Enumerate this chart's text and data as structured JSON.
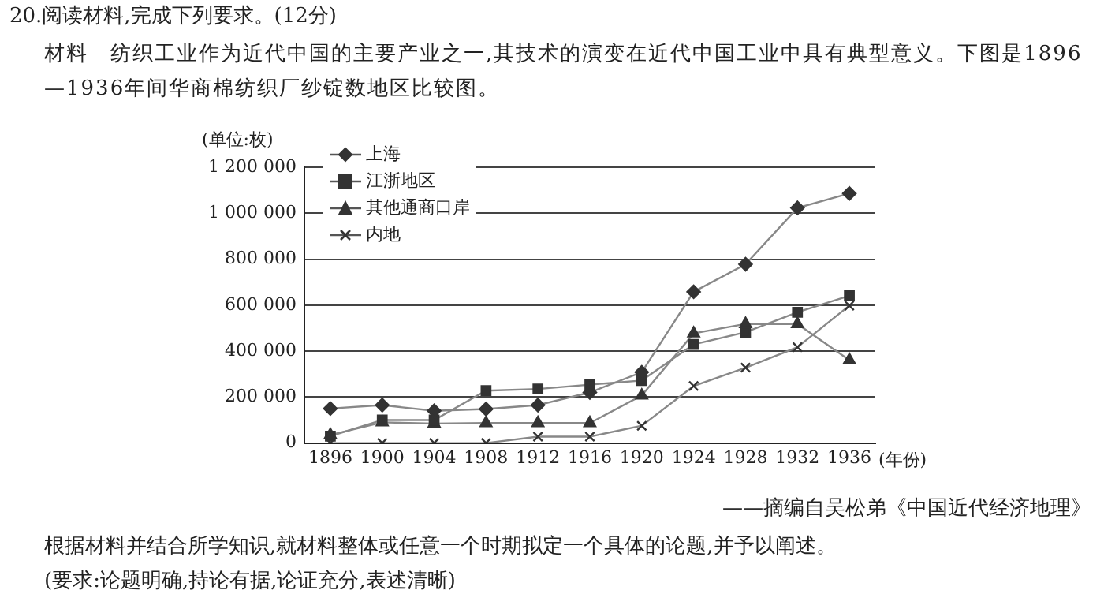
{
  "chart_data": {
    "type": "line",
    "title": "20.阅读材料,完成下列要求。(12分)",
    "subtitle": "材料　纺织工业作为近代中国的主要产业之一,其技术的演变在近代中国工业中具有典型意义。下图是1896—1936年间华商棉纺织厂纱锭数地区比较图。",
    "ylabel": "(单位:枚)",
    "xlabel": "(年份)",
    "categories": [
      "1896",
      "1900",
      "1904",
      "1908",
      "1912",
      "1916",
      "1920",
      "1924",
      "1928",
      "1932",
      "1936"
    ],
    "series": [
      {
        "name": "上海",
        "color": "#333333",
        "marker": "diamond",
        "values": [
          150000,
          165000,
          140000,
          148000,
          165000,
          220000,
          308000,
          658000,
          778000,
          1023000,
          1086000
        ]
      },
      {
        "name": "江浙地区",
        "color": "#333333",
        "marker": "square",
        "values": [
          30000,
          100000,
          100000,
          228000,
          235000,
          254000,
          272000,
          429000,
          482000,
          569000,
          641000
        ]
      },
      {
        "name": "其他通商口岸",
        "color": "#333333",
        "marker": "triangle",
        "values": [
          35000,
          90000,
          85000,
          87000,
          87000,
          87000,
          207000,
          477000,
          518000,
          518000,
          361000
        ]
      },
      {
        "name": "内地",
        "color": "#333333",
        "marker": "cross",
        "values": [
          0,
          0,
          0,
          0,
          28000,
          28000,
          75000,
          248000,
          328000,
          417000,
          598000
        ]
      }
    ],
    "ylim": [
      0,
      1200000
    ],
    "yticks": [
      {
        "value": 0,
        "label": "0"
      },
      {
        "value": 200000,
        "label": "200 000"
      },
      {
        "value": 400000,
        "label": "400 000"
      },
      {
        "value": 600000,
        "label": "600 000"
      },
      {
        "value": 800000,
        "label": "800 000"
      },
      {
        "value": 1000000,
        "label": "1 000 000"
      },
      {
        "value": 1200000,
        "label": "1 200 000"
      }
    ],
    "grid": "y",
    "legend": "top left",
    "annotations": [
      "——摘编自吴松弟《中国近代经济地理》",
      "根据材料并结合所学知识,就材料整体或任意一个时期拟定一个具体的论题,并予以阐述。",
      "(要求:论题明确,持论有据,论证充分,表述清晰)"
    ]
  }
}
